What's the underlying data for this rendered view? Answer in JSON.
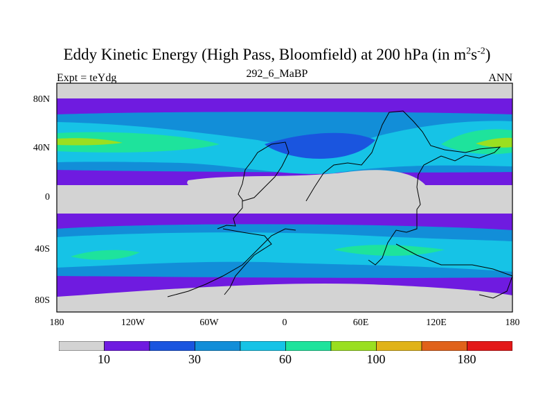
{
  "title": {
    "main": "Eddy Kinetic Energy (High Pass, Bloomfield) at 200 hPa (in m",
    "sup1": "2",
    "mid": "s",
    "sup2": "-2",
    "end": ")"
  },
  "subtitle": "292_6_MaBP",
  "left_note": "Expt = teYdg",
  "right_note": "ANN",
  "axes": {
    "y_ticks": [
      "80N",
      "40N",
      "0",
      "40S",
      "80S"
    ],
    "x_ticks": [
      "180",
      "120W",
      "60W",
      "0",
      "60E",
      "120E",
      "180"
    ]
  },
  "colors": {
    "levels": [
      "#d3d3d3",
      "#6f1be0",
      "#1a55df",
      "#128ed8",
      "#16c3e6",
      "#1ee39c",
      "#9adf20",
      "#e0b318",
      "#e0621a",
      "#e31818"
    ],
    "background": "#d3d3d3",
    "coast": "#000000"
  },
  "colorbar": {
    "labels": [
      "10",
      "30",
      "60",
      "100",
      "180"
    ]
  }
}
